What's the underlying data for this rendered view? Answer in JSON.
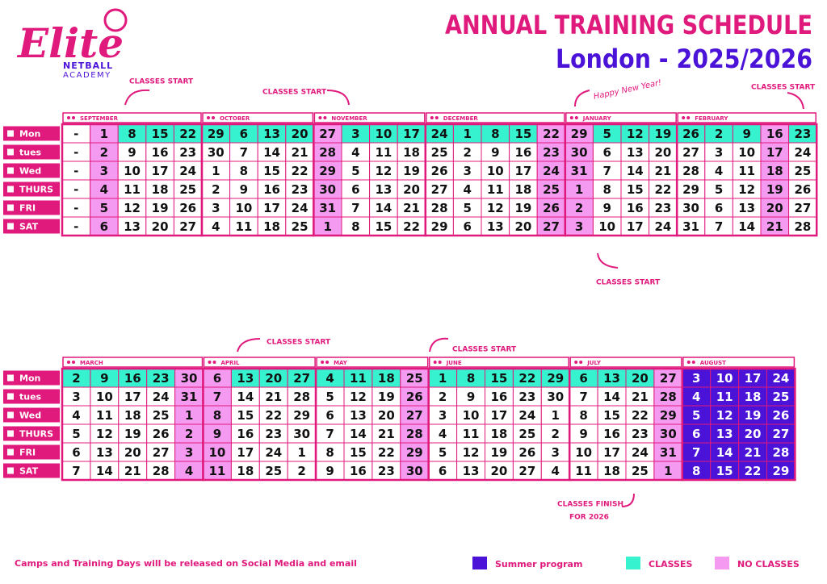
{
  "header": {
    "logo": "Elite",
    "logo_line1": "NETBALL",
    "logo_line2": "ACADEMY",
    "title": "ANNUAL TRAINING SCHEDULE",
    "subtitle": "London - 2025/2026"
  },
  "day_labels": [
    "Mon",
    "tues",
    "Wed",
    "THURS",
    "FRI",
    "SAT"
  ],
  "colors": {
    "c": "#36f2cf",
    "n": "#f49af0",
    "s": "#4b12d8",
    "w": "#ffffff"
  },
  "rows": [
    {
      "months": [
        {
          "name": "SEPTEMBER",
          "weeks": [
            {
              "days": [
                "-",
                "-",
                "-",
                "-",
                "-",
                "-"
              ],
              "fills": "wwwwww"
            },
            {
              "days": [
                1,
                2,
                3,
                4,
                5,
                6
              ],
              "fills": "nnnnnn"
            },
            {
              "days": [
                8,
                9,
                10,
                11,
                12,
                13
              ],
              "fills": "cwwwww"
            },
            {
              "days": [
                15,
                16,
                17,
                18,
                19,
                20
              ],
              "fills": "cwwwww"
            },
            {
              "days": [
                22,
                23,
                24,
                25,
                26,
                27
              ],
              "fills": "cwwwww"
            }
          ]
        },
        {
          "name": "OCTOBER",
          "weeks": [
            {
              "days": [
                29,
                30,
                1,
                2,
                3,
                4
              ],
              "fills": "cwwwww"
            },
            {
              "days": [
                6,
                7,
                8,
                9,
                10,
                11
              ],
              "fills": "cwwwww"
            },
            {
              "days": [
                13,
                14,
                15,
                16,
                17,
                18
              ],
              "fills": "cwwwww"
            },
            {
              "days": [
                20,
                21,
                22,
                23,
                24,
                25
              ],
              "fills": "cwwwww"
            }
          ]
        },
        {
          "name": "NOVEMBER",
          "weeks": [
            {
              "days": [
                27,
                28,
                29,
                30,
                31,
                1
              ],
              "fills": "nnnnnn"
            },
            {
              "days": [
                3,
                4,
                5,
                6,
                7,
                8
              ],
              "fills": "cwwwww"
            },
            {
              "days": [
                10,
                11,
                12,
                13,
                14,
                15
              ],
              "fills": "cwwwww"
            },
            {
              "days": [
                17,
                18,
                19,
                20,
                21,
                22
              ],
              "fills": "cwwwww"
            }
          ]
        },
        {
          "name": "DECEMBER",
          "weeks": [
            {
              "days": [
                24,
                25,
                26,
                27,
                28,
                29
              ],
              "fills": "cwwwww"
            },
            {
              "days": [
                1,
                2,
                3,
                4,
                5,
                6
              ],
              "fills": "cwwwww"
            },
            {
              "days": [
                8,
                9,
                10,
                11,
                12,
                13
              ],
              "fills": "cwwwww"
            },
            {
              "days": [
                15,
                16,
                17,
                18,
                19,
                20
              ],
              "fills": "cwwwww"
            },
            {
              "days": [
                22,
                23,
                24,
                25,
                26,
                27
              ],
              "fills": "nnnnnn"
            }
          ]
        },
        {
          "name": "JANUARY",
          "weeks": [
            {
              "days": [
                29,
                30,
                31,
                1,
                2,
                3
              ],
              "fills": "nnnnnn"
            },
            {
              "days": [
                5,
                6,
                7,
                8,
                9,
                10
              ],
              "fills": "cwwwww"
            },
            {
              "days": [
                12,
                13,
                14,
                15,
                16,
                17
              ],
              "fills": "cwwwww"
            },
            {
              "days": [
                19,
                20,
                21,
                22,
                23,
                24
              ],
              "fills": "cwwwww"
            }
          ]
        },
        {
          "name": "FEBRUARY",
          "weeks": [
            {
              "days": [
                26,
                27,
                28,
                29,
                30,
                31
              ],
              "fills": "cwwwww"
            },
            {
              "days": [
                2,
                3,
                4,
                5,
                6,
                7
              ],
              "fills": "cwwwww"
            },
            {
              "days": [
                9,
                10,
                11,
                12,
                13,
                14
              ],
              "fills": "cwwwww"
            },
            {
              "days": [
                16,
                17,
                18,
                19,
                20,
                21
              ],
              "fills": "nnnnnn"
            },
            {
              "days": [
                23,
                24,
                25,
                26,
                27,
                28
              ],
              "fills": "cwwwww"
            }
          ]
        }
      ]
    },
    {
      "months": [
        {
          "name": "MARCH",
          "weeks": [
            {
              "days": [
                2,
                3,
                4,
                5,
                6,
                7
              ],
              "fills": "cwwwww"
            },
            {
              "days": [
                9,
                10,
                11,
                12,
                13,
                14
              ],
              "fills": "cwwwww"
            },
            {
              "days": [
                16,
                17,
                18,
                19,
                20,
                21
              ],
              "fills": "cwwwww"
            },
            {
              "days": [
                23,
                24,
                25,
                26,
                27,
                28
              ],
              "fills": "cwwwww"
            },
            {
              "days": [
                30,
                31,
                1,
                2,
                3,
                4
              ],
              "fills": "nnnnnn"
            }
          ]
        },
        {
          "name": "APRIL",
          "weeks": [
            {
              "days": [
                6,
                7,
                8,
                9,
                10,
                11
              ],
              "fills": "nnnnnn"
            },
            {
              "days": [
                13,
                14,
                15,
                16,
                17,
                18
              ],
              "fills": "cwwwww"
            },
            {
              "days": [
                20,
                21,
                22,
                23,
                24,
                25
              ],
              "fills": "cwwwww"
            },
            {
              "days": [
                27,
                28,
                29,
                30,
                1,
                2
              ],
              "fills": "cwwwww"
            }
          ]
        },
        {
          "name": "MAY",
          "weeks": [
            {
              "days": [
                4,
                5,
                6,
                7,
                8,
                9
              ],
              "fills": "cwwwww"
            },
            {
              "days": [
                11,
                12,
                13,
                14,
                15,
                16
              ],
              "fills": "cwwwww"
            },
            {
              "days": [
                18,
                19,
                20,
                21,
                22,
                23
              ],
              "fills": "cwwwww"
            },
            {
              "days": [
                25,
                26,
                27,
                28,
                29,
                30
              ],
              "fills": "nnnnnn"
            }
          ]
        },
        {
          "name": "JUNE",
          "weeks": [
            {
              "days": [
                1,
                2,
                3,
                4,
                5,
                6
              ],
              "fills": "cwwwww"
            },
            {
              "days": [
                8,
                9,
                10,
                11,
                12,
                13
              ],
              "fills": "cwwwww"
            },
            {
              "days": [
                15,
                16,
                17,
                18,
                19,
                20
              ],
              "fills": "cwwwww"
            },
            {
              "days": [
                22,
                23,
                24,
                25,
                26,
                27
              ],
              "fills": "cwwwww"
            },
            {
              "days": [
                29,
                30,
                1,
                2,
                3,
                4
              ],
              "fills": "cwwwww"
            }
          ]
        },
        {
          "name": "JULY",
          "weeks": [
            {
              "days": [
                6,
                7,
                8,
                9,
                10,
                11
              ],
              "fills": "cwwwww"
            },
            {
              "days": [
                13,
                14,
                15,
                16,
                17,
                18
              ],
              "fills": "cwwwww"
            },
            {
              "days": [
                20,
                21,
                22,
                23,
                24,
                25
              ],
              "fills": "cwwwww"
            },
            {
              "days": [
                27,
                28,
                29,
                30,
                31,
                1
              ],
              "fills": "nnnnnn"
            }
          ]
        },
        {
          "name": "AUGUST",
          "weeks": [
            {
              "days": [
                3,
                4,
                5,
                6,
                7,
                8
              ],
              "fills": "ssssss"
            },
            {
              "days": [
                10,
                11,
                12,
                13,
                14,
                15
              ],
              "fills": "ssssss"
            },
            {
              "days": [
                17,
                18,
                19,
                20,
                21,
                22
              ],
              "fills": "ssssss"
            },
            {
              "days": [
                24,
                25,
                26,
                27,
                28,
                29
              ],
              "fills": "ssssss"
            }
          ]
        }
      ]
    }
  ],
  "annotations": {
    "start1": "CLASSES START",
    "start2": "CLASSES START",
    "start3": "CLASSES START",
    "start4": "CLASSES START",
    "start5": "CLASSES START",
    "start6": "CLASSES START",
    "new_year": "Happy New Year!",
    "finish1": "CLASSES FINISH",
    "finish2": "FOR 2026"
  },
  "footer": {
    "note": "Camps and Training Days will be released on Social Media and email",
    "legend": [
      {
        "label": "Summer program",
        "fill": "s"
      },
      {
        "label": "CLASSES",
        "fill": "c"
      },
      {
        "label": "NO CLASSES",
        "fill": "n"
      }
    ]
  }
}
